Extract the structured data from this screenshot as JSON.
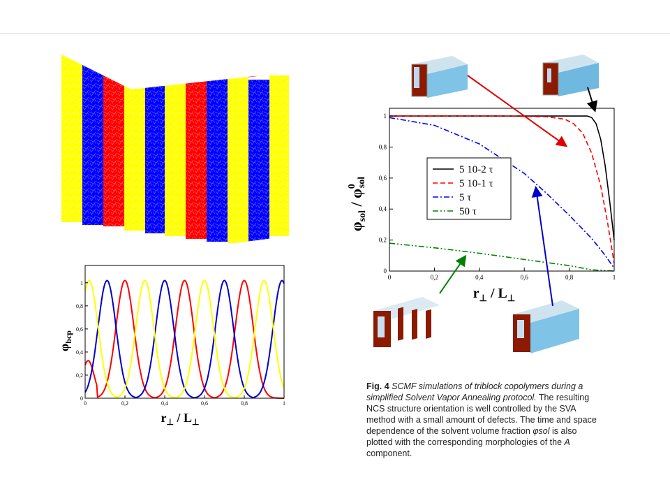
{
  "chart_data": [
    {
      "type": "line",
      "xlabel": "r⊥ / L⊥",
      "ylabel": "φbcp",
      "xlim": [
        0,
        1
      ],
      "ylim": [
        0,
        1.15
      ],
      "x_ticks": [
        "0",
        "0,2",
        "0,4",
        "0,6",
        "0,8",
        "1"
      ],
      "y_ticks": [
        "0",
        "0,2",
        "0,4",
        "0,6",
        "0,8",
        "1"
      ],
      "series": [
        {
          "color": "#ff0000",
          "peaks_x": [
            0.2,
            0.5,
            0.8
          ],
          "extra_edge_bump": [
            0.0,
            0.32
          ]
        },
        {
          "color": "#0000cc",
          "peaks_x": [
            0.11,
            0.4,
            0.7,
            0.99
          ],
          "edge_value": 0.49
        },
        {
          "color": "#ffff00",
          "peaks_x": [
            0.02,
            0.3,
            0.6,
            0.9
          ],
          "edge_value": 0.28
        }
      ]
    },
    {
      "type": "line",
      "xlabel": "r⊥ / L⊥",
      "ylabel": "φsol / φ0sol",
      "xlim": [
        0,
        1
      ],
      "ylim": [
        0,
        1.05
      ],
      "x_ticks": [
        "0",
        "0,2",
        "0,4",
        "0,6",
        "0,8",
        "1"
      ],
      "y_ticks": [
        "0",
        "0,2",
        "0,4",
        "0,6",
        "0,8",
        "1"
      ],
      "legend_position": "center-left",
      "series": [
        {
          "name": "5 10-2 τ",
          "color": "#000000",
          "dash": "solid",
          "x": [
            0,
            0.5,
            0.88,
            0.9,
            0.92,
            0.94,
            0.96,
            0.98,
            1.0
          ],
          "y": [
            1,
            1,
            1,
            0.99,
            0.95,
            0.85,
            0.68,
            0.45,
            0.2
          ]
        },
        {
          "name": "5 10-1 τ",
          "color": "#ff0000",
          "dash": "dashed",
          "x": [
            0,
            0.5,
            0.7,
            0.78,
            0.82,
            0.86,
            0.9,
            0.94,
            0.97,
            1.0
          ],
          "y": [
            1,
            1,
            0.995,
            0.98,
            0.95,
            0.89,
            0.76,
            0.55,
            0.32,
            0.05
          ]
        },
        {
          "name": "5 τ",
          "color": "#0000ff",
          "dash": "dashdot",
          "x": [
            0,
            0.2,
            0.4,
            0.6,
            0.7,
            0.8,
            0.9,
            0.95,
            1.0
          ],
          "y": [
            0.99,
            0.94,
            0.82,
            0.63,
            0.5,
            0.36,
            0.21,
            0.12,
            0.02
          ]
        },
        {
          "name": "50 τ",
          "color": "#008000",
          "dash": "dashdotdot",
          "x": [
            0,
            0.2,
            0.4,
            0.6,
            0.8,
            0.9,
            1.0
          ],
          "y": [
            0.18,
            0.15,
            0.115,
            0.075,
            0.035,
            0.008,
            0.0
          ]
        }
      ]
    }
  ],
  "caption": {
    "fig_label": "Fig. 4",
    "italic_text": "SCMF simulations of triblock copolymers during a simplified Solvent Vapor Annealing protocol.",
    "body_text_1": "The resulting NCS structure orientation is well controlled by the SVA method with a small amount of defects. The time and space dependence of the solvent volume fraction",
    "symbol": "φsol",
    "body_text_2": "is also plotted with the corresponding morphologies of the",
    "italic_a": "A",
    "body_text_3": "component."
  },
  "colors": {
    "red": "#ff0000",
    "blue": "#0000cc",
    "yellow": "#ffff00",
    "black": "#000000",
    "green": "#008000"
  }
}
